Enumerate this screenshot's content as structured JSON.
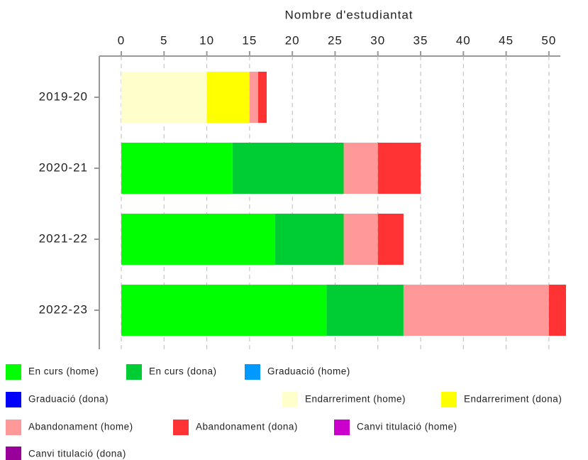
{
  "chart_data": {
    "type": "bar",
    "orientation": "horizontal",
    "stacked": true,
    "x_label": "Nombre d'estudiantat",
    "categories": [
      "2019-20",
      "2020-21",
      "2021-22",
      "2022-23"
    ],
    "xlim": [
      0,
      52
    ],
    "xticks": [
      0,
      5,
      10,
      15,
      20,
      25,
      30,
      35,
      40,
      45,
      50
    ],
    "grid": true,
    "series": [
      {
        "name": "En curs (home)",
        "color": "#00ff00",
        "values": [
          0,
          13,
          18,
          24
        ]
      },
      {
        "name": "En curs (dona)",
        "color": "#00cc33",
        "values": [
          0,
          13,
          8,
          9
        ]
      },
      {
        "name": "Graduació (home)",
        "color": "#0099ff",
        "values": [
          0,
          0,
          0,
          0
        ]
      },
      {
        "name": "Graduació (dona)",
        "color": "#0000ff",
        "values": [
          0,
          0,
          0,
          0
        ]
      },
      {
        "name": "Endarreriment (home)",
        "color": "#ffffcc",
        "values": [
          10,
          0,
          0,
          0
        ]
      },
      {
        "name": "Endarreriment (dona)",
        "color": "#ffff00",
        "values": [
          5,
          0,
          0,
          0
        ]
      },
      {
        "name": "Abandonament (home)",
        "color": "#ff9999",
        "values": [
          1,
          4,
          4,
          17
        ]
      },
      {
        "name": "Abandonament (dona)",
        "color": "#ff3333",
        "values": [
          1,
          5,
          3,
          2
        ]
      },
      {
        "name": "Canvi titulació (home)",
        "color": "#cc00cc",
        "values": [
          0,
          0,
          0,
          0
        ]
      },
      {
        "name": "Canvi titulació (dona)",
        "color": "#990099",
        "values": [
          0,
          0,
          0,
          0
        ]
      }
    ]
  }
}
